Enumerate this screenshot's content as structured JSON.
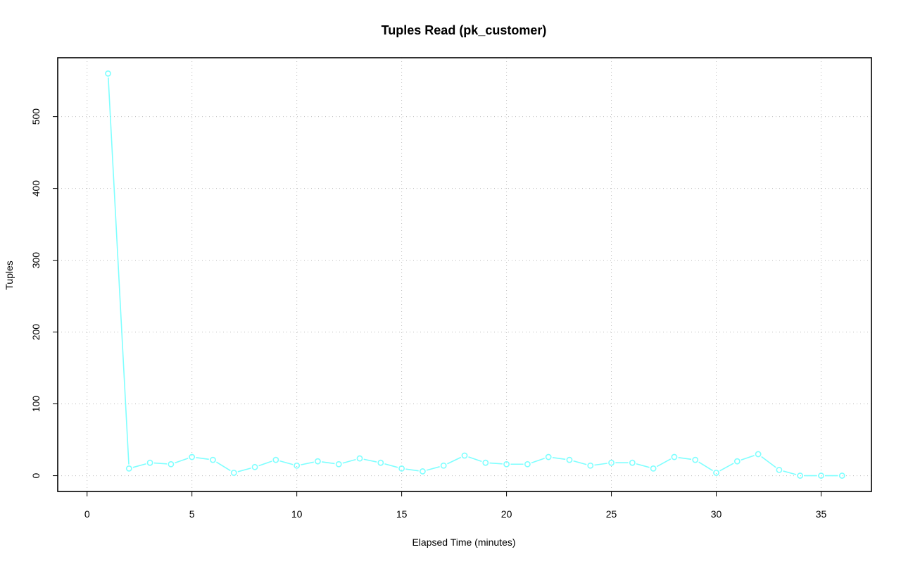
{
  "chart_data": {
    "type": "line",
    "title": "Tuples Read (pk_customer)",
    "xlabel": "Elapsed Time (minutes)",
    "ylabel": "Tuples",
    "xlim": [
      -1.4,
      37.4
    ],
    "ylim": [
      -22,
      582
    ],
    "xticks": [
      0,
      5,
      10,
      15,
      20,
      25,
      30,
      35
    ],
    "yticks": [
      0,
      100,
      200,
      300,
      400,
      500
    ],
    "grid": true,
    "series": [
      {
        "color": "#7fffff",
        "marker": "open-circle",
        "x": [
          1,
          2,
          3,
          4,
          5,
          6,
          7,
          8,
          9,
          10,
          11,
          12,
          13,
          14,
          15,
          16,
          17,
          18,
          19,
          20,
          21,
          22,
          23,
          24,
          25,
          26,
          27,
          28,
          29,
          30,
          31,
          32,
          33,
          34,
          35,
          36
        ],
        "y": [
          560,
          10,
          18,
          16,
          26,
          22,
          4,
          12,
          22,
          14,
          20,
          16,
          24,
          18,
          10,
          6,
          14,
          28,
          18,
          16,
          16,
          26,
          22,
          14,
          18,
          18,
          10,
          26,
          22,
          4,
          20,
          30,
          8,
          0,
          0,
          0
        ]
      }
    ]
  }
}
